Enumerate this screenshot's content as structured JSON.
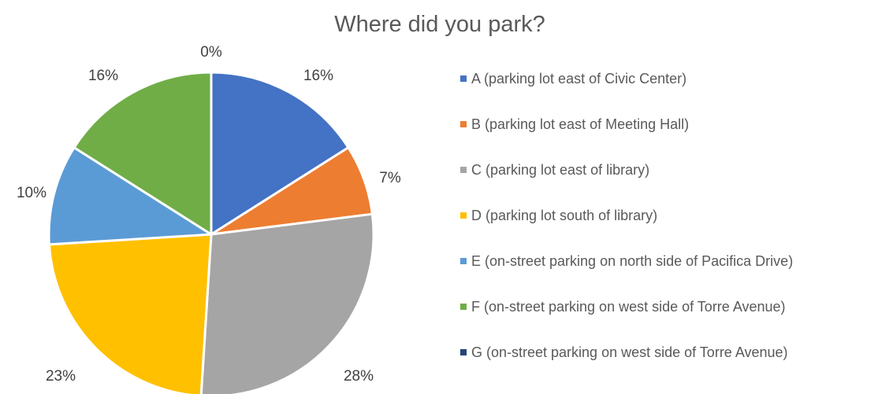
{
  "chart_data": {
    "type": "pie",
    "title": "Where did you park?",
    "legend_position": "right",
    "slices": [
      {
        "label": "A (parking lot east of Civic Center)",
        "value": 16,
        "data_label": "16%",
        "color": "#4472C4"
      },
      {
        "label": "B (parking lot east of Meeting Hall)",
        "value": 7,
        "data_label": "7%",
        "color": "#ED7D31"
      },
      {
        "label": "C (parking lot east of library)",
        "value": 28,
        "data_label": "28%",
        "color": "#A5A5A5"
      },
      {
        "label": "D (parking lot south of library)",
        "value": 23,
        "data_label": "23%",
        "color": "#FFC000"
      },
      {
        "label": "E (on-street parking on north side of Pacifica Drive)",
        "value": 10,
        "data_label": "10%",
        "color": "#5B9BD5"
      },
      {
        "label": "F (on-street parking on west side of Torre Avenue)",
        "value": 16,
        "data_label": "16%",
        "color": "#70AD47"
      },
      {
        "label": "G (on-street parking on west side of Torre Avenue)",
        "value": 0,
        "data_label": "0%",
        "color": "#264478"
      }
    ]
  }
}
